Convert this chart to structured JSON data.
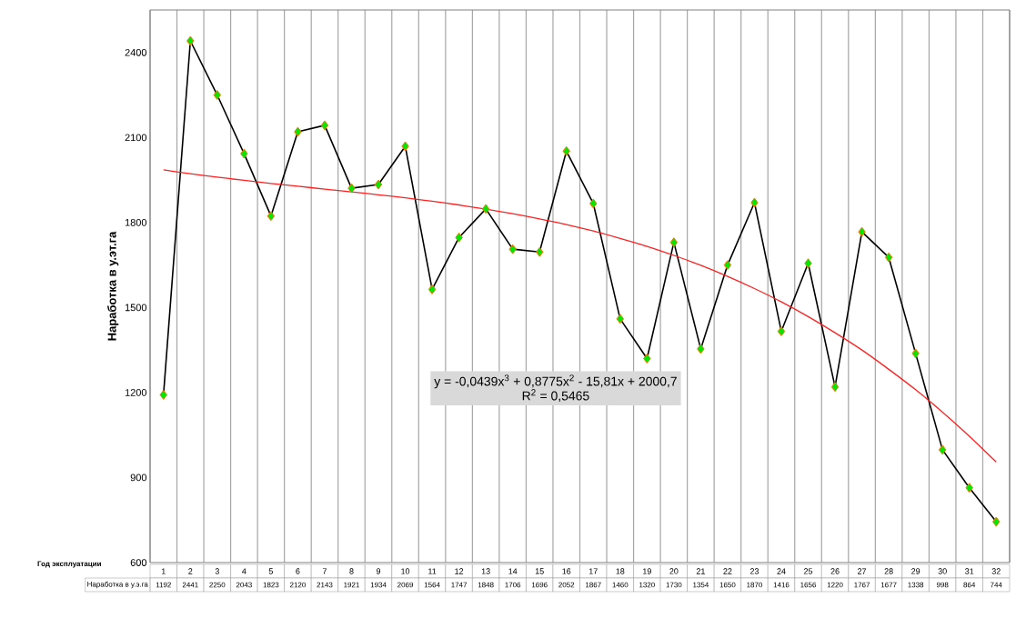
{
  "chart_data": {
    "type": "line",
    "ylabel": "Наработка в у.эт.га",
    "xlabel": "Год эксплуатации",
    "categories": [
      "1",
      "2",
      "3",
      "4",
      "5",
      "6",
      "7",
      "8",
      "9",
      "10",
      "11",
      "12",
      "13",
      "14",
      "15",
      "16",
      "17",
      "18",
      "19",
      "20",
      "21",
      "22",
      "23",
      "24",
      "25",
      "26",
      "27",
      "28",
      "29",
      "30",
      "31",
      "32"
    ],
    "ylim": [
      600,
      2550
    ],
    "yticks": [
      600,
      900,
      1200,
      1500,
      1800,
      2100,
      2400
    ],
    "grid": "x",
    "series": [
      {
        "color": "#000000",
        "marker": "diamond",
        "value_labels": [
          "1192",
          "2441",
          "2250",
          "2043",
          "1823",
          "2120",
          "2143",
          "1921",
          "1934",
          "2069",
          "1564",
          "1747",
          "1848",
          "1706",
          "1696",
          "2052",
          "1867",
          "1460",
          "1320",
          "1730",
          "1354",
          "1650",
          "1870",
          "1416",
          "1656",
          "1220",
          "1767",
          "1677",
          "1338",
          "998",
          "864",
          "744"
        ],
        "values": [
          1192,
          2441,
          2250,
          2043,
          1823,
          2120,
          2143,
          1921,
          1934,
          2069,
          1564,
          1747,
          1848,
          1706,
          1696,
          2052,
          1867,
          1460,
          1320,
          1730,
          1354,
          1650,
          1870,
          1416,
          1656,
          1220,
          1767,
          1677,
          1338,
          998,
          864,
          744
        ]
      },
      {
        "color": "#ff2020",
        "marker": "none",
        "values": [
          1986,
          1972,
          1960,
          1949,
          1938,
          1928,
          1918,
          1908,
          1898,
          1887,
          1875,
          1862,
          1847,
          1831,
          1813,
          1793,
          1770,
          1744,
          1716,
          1684,
          1649,
          1610,
          1567,
          1520,
          1468,
          1411,
          1350,
          1282,
          1210,
          1131,
          1046,
          955
        ]
      }
    ],
    "annotations": [
      "Наработка в у.э.га",
      "y = -0,0439x$^{3}$ + 0,8775x$^{2}$ - 15,81x + 2000,7",
      "R$^{2}$ = 0,5465"
    ]
  }
}
